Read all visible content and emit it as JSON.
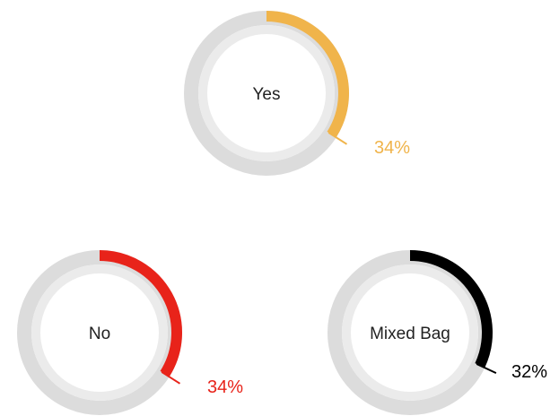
{
  "chart_data": {
    "type": "donut",
    "unit": "%",
    "track_color": "#dcdcdc",
    "inner_track_color": "#ebebeb",
    "series": [
      {
        "name": "Yes",
        "value": 34,
        "value_label": "34%",
        "color": "#f0b44b"
      },
      {
        "name": "No",
        "value": 34,
        "value_label": "34%",
        "color": "#e8231a"
      },
      {
        "name": "Mixed Bag",
        "value": 32,
        "value_label": "32%",
        "color": "#000000"
      }
    ]
  }
}
